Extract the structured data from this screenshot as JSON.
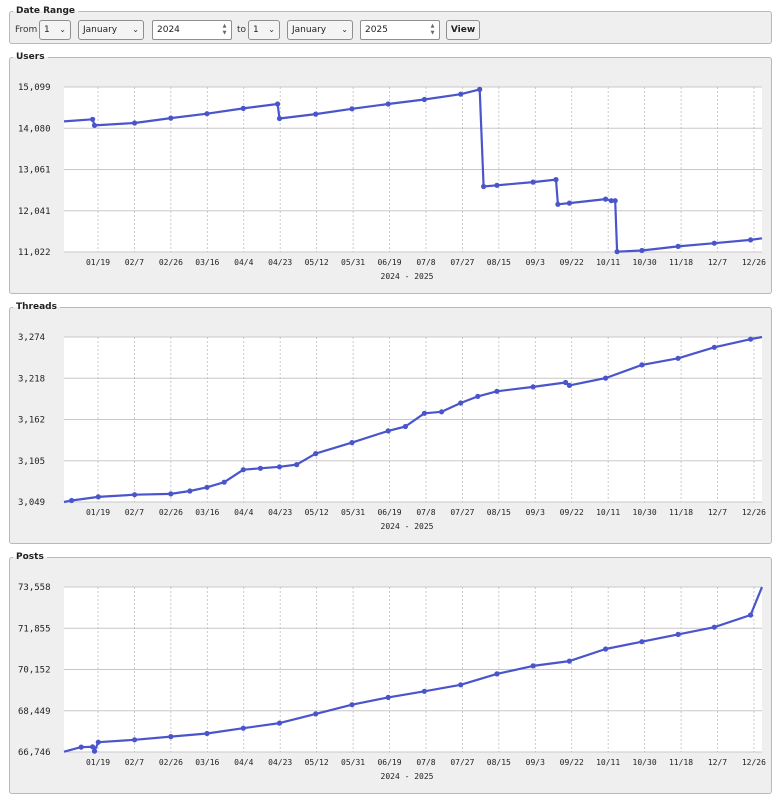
{
  "date_range": {
    "title": "Date Range",
    "from_label": "From",
    "from_day": "1",
    "from_month": "January",
    "from_year": "2024",
    "to_label": "to",
    "to_day": "1",
    "to_month": "January",
    "to_year": "2025",
    "view_label": "View"
  },
  "chart_data": [
    {
      "type": "line",
      "title": "Users",
      "xlabel": "2024 - 2025",
      "x_ticks": [
        "01/19",
        "02/7",
        "02/26",
        "03/16",
        "04/4",
        "04/23",
        "05/12",
        "05/31",
        "06/19",
        "07/8",
        "07/27",
        "08/15",
        "09/3",
        "09/22",
        "10/11",
        "10/30",
        "11/18",
        "12/7",
        "12/26"
      ],
      "y_ticks": [
        "15,099",
        "14,080",
        "13,061",
        "12,041",
        "11,022"
      ],
      "ylim": [
        11022,
        15099
      ],
      "grid": true,
      "color": "#4a55cc",
      "series": [
        {
          "x": [
            "2024-01-01",
            "2024-01-16",
            "2024-01-17",
            "2024-02-07",
            "2024-02-26",
            "2024-03-16",
            "2024-04-04",
            "2024-04-22",
            "2024-04-23",
            "2024-05-12",
            "2024-05-31",
            "2024-06-19",
            "2024-07-08",
            "2024-07-27",
            "2024-08-06",
            "2024-08-08",
            "2024-08-15",
            "2024-09-03",
            "2024-09-15",
            "2024-09-16",
            "2024-09-22",
            "2024-10-11",
            "2024-10-14",
            "2024-10-16",
            "2024-10-17",
            "2024-10-30",
            "2024-11-18",
            "2024-12-07",
            "2024-12-26",
            "2025-01-01"
          ],
          "y": [
            14250,
            14300,
            14150,
            14210,
            14330,
            14440,
            14570,
            14680,
            14320,
            14430,
            14560,
            14680,
            14790,
            14920,
            15040,
            12640,
            12670,
            12750,
            12810,
            12200,
            12230,
            12330,
            12290,
            12290,
            11030,
            11060,
            11160,
            11240,
            11320,
            11360
          ]
        }
      ]
    },
    {
      "type": "line",
      "title": "Threads",
      "xlabel": "2024 - 2025",
      "x_ticks": [
        "01/19",
        "02/7",
        "02/26",
        "03/16",
        "04/4",
        "04/23",
        "05/12",
        "05/31",
        "06/19",
        "07/8",
        "07/27",
        "08/15",
        "09/3",
        "09/22",
        "10/11",
        "10/30",
        "11/18",
        "12/7",
        "12/26"
      ],
      "y_ticks": [
        "3,274",
        "3,218",
        "3,162",
        "3,105",
        "3,049"
      ],
      "ylim": [
        3049,
        3274
      ],
      "grid": true,
      "color": "#4a55cc",
      "series": [
        {
          "x": [
            "2024-01-01",
            "2024-01-05",
            "2024-01-19",
            "2024-02-07",
            "2024-02-26",
            "2024-03-07",
            "2024-03-16",
            "2024-03-25",
            "2024-04-04",
            "2024-04-13",
            "2024-04-23",
            "2024-05-02",
            "2024-05-12",
            "2024-05-31",
            "2024-06-19",
            "2024-06-28",
            "2024-07-08",
            "2024-07-17",
            "2024-07-27",
            "2024-08-05",
            "2024-08-15",
            "2024-09-03",
            "2024-09-20",
            "2024-09-22",
            "2024-10-11",
            "2024-10-30",
            "2024-11-18",
            "2024-12-07",
            "2024-12-26",
            "2025-01-01"
          ],
          "y": [
            3049,
            3051,
            3056,
            3059,
            3060,
            3064,
            3069,
            3076,
            3093,
            3095,
            3097,
            3100,
            3115,
            3130,
            3146,
            3152,
            3170,
            3172,
            3184,
            3193,
            3200,
            3206,
            3212,
            3208,
            3218,
            3236,
            3245,
            3260,
            3271,
            3274
          ]
        }
      ]
    },
    {
      "type": "line",
      "title": "Posts",
      "xlabel": "2024 - 2025",
      "x_ticks": [
        "01/19",
        "02/7",
        "02/26",
        "03/16",
        "04/4",
        "04/23",
        "05/12",
        "05/31",
        "06/19",
        "07/8",
        "07/27",
        "08/15",
        "09/3",
        "09/22",
        "10/11",
        "10/30",
        "11/18",
        "12/7",
        "12/26"
      ],
      "y_ticks": [
        "73,558",
        "71,855",
        "70,152",
        "68,449",
        "66,746"
      ],
      "ylim": [
        66746,
        73558
      ],
      "grid": true,
      "color": "#4a55cc",
      "series": [
        {
          "x": [
            "2024-01-01",
            "2024-01-10",
            "2024-01-16",
            "2024-01-17",
            "2024-01-19",
            "2024-02-07",
            "2024-02-26",
            "2024-03-16",
            "2024-04-04",
            "2024-04-23",
            "2024-05-12",
            "2024-05-31",
            "2024-06-19",
            "2024-07-08",
            "2024-07-27",
            "2024-08-15",
            "2024-09-03",
            "2024-09-22",
            "2024-10-11",
            "2024-10-30",
            "2024-11-18",
            "2024-12-07",
            "2024-12-26",
            "2025-01-01"
          ],
          "y": [
            66760,
            66950,
            66960,
            66780,
            67150,
            67250,
            67380,
            67510,
            67730,
            67940,
            68320,
            68700,
            69000,
            69250,
            69520,
            69970,
            70300,
            70500,
            71000,
            71300,
            71600,
            71900,
            72400,
            73558
          ]
        }
      ]
    }
  ]
}
